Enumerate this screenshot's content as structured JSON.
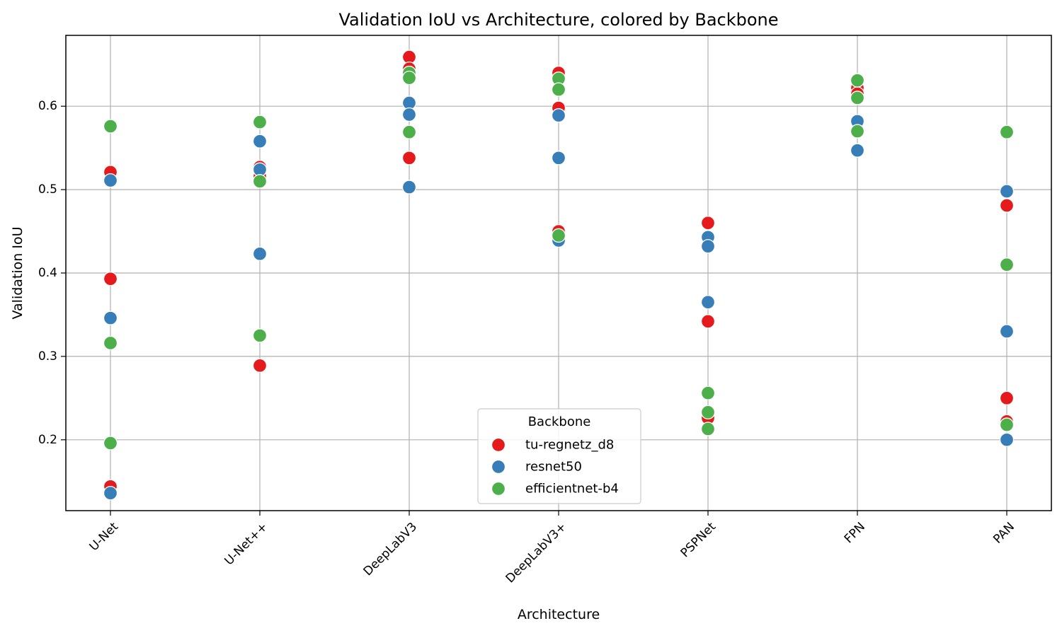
{
  "chart_data": {
    "type": "scatter",
    "title": "Validation IoU vs Architecture, colored by Backbone",
    "xlabel": "Architecture",
    "ylabel": "Validation IoU",
    "categories": [
      "U-Net",
      "U-Net++",
      "DeepLabV3",
      "DeepLabV3+",
      "PSPNet",
      "FPN",
      "PAN"
    ],
    "ylim": [
      0.115,
      0.685
    ],
    "yticks": [
      0.2,
      0.3,
      0.4,
      0.5,
      0.6
    ],
    "ytick_labels": [
      "0.2",
      "0.3",
      "0.4",
      "0.5",
      "0.6"
    ],
    "grid": true,
    "legend": {
      "title": "Backbone",
      "placement": "lower center"
    },
    "series": [
      {
        "name": "tu-regnetz_d8",
        "color": "#e41a1c",
        "points": [
          {
            "x": "U-Net",
            "y": 0.521
          },
          {
            "x": "U-Net",
            "y": 0.393
          },
          {
            "x": "U-Net",
            "y": 0.144
          },
          {
            "x": "U-Net++",
            "y": 0.527
          },
          {
            "x": "U-Net++",
            "y": 0.516
          },
          {
            "x": "U-Net++",
            "y": 0.289
          },
          {
            "x": "DeepLabV3",
            "y": 0.659
          },
          {
            "x": "DeepLabV3",
            "y": 0.645
          },
          {
            "x": "DeepLabV3",
            "y": 0.538
          },
          {
            "x": "DeepLabV3+",
            "y": 0.64
          },
          {
            "x": "DeepLabV3+",
            "y": 0.598
          },
          {
            "x": "DeepLabV3+",
            "y": 0.45
          },
          {
            "x": "PSPNet",
            "y": 0.46
          },
          {
            "x": "PSPNet",
            "y": 0.342
          },
          {
            "x": "PSPNet",
            "y": 0.226
          },
          {
            "x": "FPN",
            "y": 0.622
          },
          {
            "x": "FPN",
            "y": 0.615
          },
          {
            "x": "PAN",
            "y": 0.481
          },
          {
            "x": "PAN",
            "y": 0.25
          },
          {
            "x": "PAN",
            "y": 0.222
          }
        ]
      },
      {
        "name": "resnet50",
        "color": "#377eb8",
        "points": [
          {
            "x": "U-Net",
            "y": 0.511
          },
          {
            "x": "U-Net",
            "y": 0.346
          },
          {
            "x": "U-Net",
            "y": 0.136
          },
          {
            "x": "U-Net++",
            "y": 0.558
          },
          {
            "x": "U-Net++",
            "y": 0.524
          },
          {
            "x": "U-Net++",
            "y": 0.423
          },
          {
            "x": "DeepLabV3",
            "y": 0.604
          },
          {
            "x": "DeepLabV3",
            "y": 0.59
          },
          {
            "x": "DeepLabV3",
            "y": 0.503
          },
          {
            "x": "DeepLabV3+",
            "y": 0.589
          },
          {
            "x": "DeepLabV3+",
            "y": 0.538
          },
          {
            "x": "DeepLabV3+",
            "y": 0.439
          },
          {
            "x": "PSPNet",
            "y": 0.443
          },
          {
            "x": "PSPNet",
            "y": 0.432
          },
          {
            "x": "PSPNet",
            "y": 0.365
          },
          {
            "x": "FPN",
            "y": 0.582
          },
          {
            "x": "FPN",
            "y": 0.547
          },
          {
            "x": "PAN",
            "y": 0.498
          },
          {
            "x": "PAN",
            "y": 0.33
          },
          {
            "x": "PAN",
            "y": 0.2
          }
        ]
      },
      {
        "name": "efficientnet-b4",
        "color": "#4daf4a",
        "points": [
          {
            "x": "U-Net",
            "y": 0.576
          },
          {
            "x": "U-Net",
            "y": 0.316
          },
          {
            "x": "U-Net",
            "y": 0.196
          },
          {
            "x": "U-Net++",
            "y": 0.581
          },
          {
            "x": "U-Net++",
            "y": 0.51
          },
          {
            "x": "U-Net++",
            "y": 0.325
          },
          {
            "x": "DeepLabV3",
            "y": 0.64
          },
          {
            "x": "DeepLabV3",
            "y": 0.634
          },
          {
            "x": "DeepLabV3",
            "y": 0.569
          },
          {
            "x": "DeepLabV3+",
            "y": 0.633
          },
          {
            "x": "DeepLabV3+",
            "y": 0.62
          },
          {
            "x": "DeepLabV3+",
            "y": 0.445
          },
          {
            "x": "PSPNet",
            "y": 0.256
          },
          {
            "x": "PSPNet",
            "y": 0.233
          },
          {
            "x": "PSPNet",
            "y": 0.213
          },
          {
            "x": "FPN",
            "y": 0.631
          },
          {
            "x": "FPN",
            "y": 0.61
          },
          {
            "x": "FPN",
            "y": 0.57
          },
          {
            "x": "PAN",
            "y": 0.569
          },
          {
            "x": "PAN",
            "y": 0.41
          },
          {
            "x": "PAN",
            "y": 0.218
          }
        ]
      }
    ]
  }
}
